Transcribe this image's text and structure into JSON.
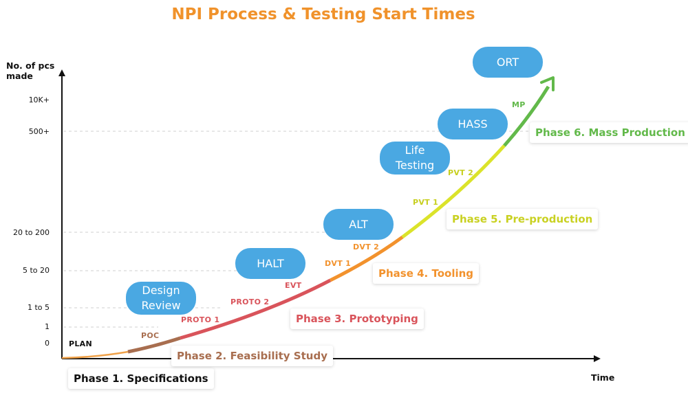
{
  "title": "NPI Process & Testing Start Times",
  "y_axis_label_lines": [
    "No. of pcs",
    "made"
  ],
  "x_axis_label": "Time",
  "y_ticks": [
    "10K+",
    "500+",
    "20 to 200",
    "5 to 20",
    "1 to 5",
    "1",
    "0"
  ],
  "tests": [
    "ORT",
    "HASS",
    "Life Testing",
    "ALT",
    "HALT",
    "Design Review"
  ],
  "milestones": [
    "MP",
    "PVT 2",
    "PVT 1",
    "DVT 2",
    "DVT 1",
    "EVT",
    "PROTO 2",
    "PROTO 1",
    "POC",
    "PLAN"
  ],
  "phases": [
    "Phase 1. Specifications",
    "Phase 2. Feasibility Study",
    "Phase 3. Prototyping",
    "Phase 4. Tooling",
    "Phase 5. Pre-production",
    "Phase 6. Mass Production"
  ],
  "colors": {
    "title": "#f0922b",
    "bubble": "#4aa8e2",
    "phase1": "#111111",
    "phase2": "#a86e4f",
    "phase3": "#d9545b",
    "phase4": "#f2922d",
    "phase5": "#dbe32a",
    "phase6": "#62b94a",
    "axis": "#111111",
    "grid": "#cccccc"
  }
}
